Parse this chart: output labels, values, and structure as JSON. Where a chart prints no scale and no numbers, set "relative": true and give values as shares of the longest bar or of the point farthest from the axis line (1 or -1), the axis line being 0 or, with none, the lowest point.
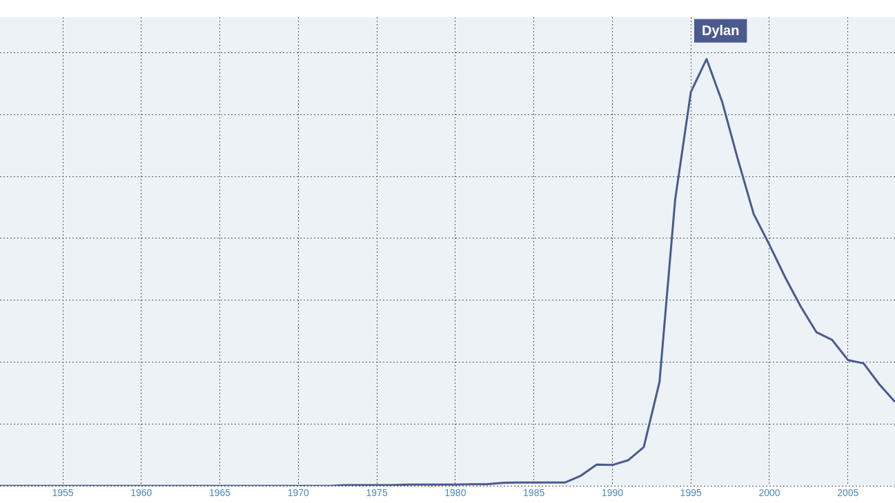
{
  "chart_data": {
    "type": "line",
    "relative": true,
    "x": [
      1951,
      1952,
      1953,
      1954,
      1955,
      1956,
      1957,
      1958,
      1959,
      1960,
      1961,
      1962,
      1963,
      1964,
      1965,
      1966,
      1967,
      1968,
      1969,
      1970,
      1971,
      1972,
      1973,
      1974,
      1975,
      1976,
      1977,
      1978,
      1979,
      1980,
      1981,
      1982,
      1983,
      1984,
      1985,
      1986,
      1987,
      1988,
      1989,
      1990,
      1991,
      1992,
      1993,
      1994,
      1995,
      1996,
      1997,
      1998,
      1999,
      2000,
      2001,
      2002,
      2003,
      2004,
      2005,
      2006,
      2007,
      2008
    ],
    "series": [
      {
        "name": "Dylan",
        "color": "#4a5a8f",
        "values": [
          0,
          0,
          0,
          0,
          0,
          0,
          0,
          0,
          0,
          0,
          0,
          0,
          0,
          0,
          0,
          0,
          0,
          0,
          0,
          0,
          0,
          0,
          0.002,
          0.002,
          0.002,
          0.002,
          0.003,
          0.003,
          0.003,
          0.003,
          0.004,
          0.004,
          0.007,
          0.008,
          0.008,
          0.008,
          0.008,
          0.024,
          0.05,
          0.049,
          0.06,
          0.091,
          0.243,
          0.671,
          0.923,
          1,
          0.899,
          0.764,
          0.637,
          0.565,
          0.489,
          0.42,
          0.36,
          0.342,
          0.295,
          0.287,
          0.238,
          0.197
        ]
      }
    ],
    "xlim": [
      1951,
      2008
    ],
    "xticks": [
      1955,
      1960,
      1965,
      1970,
      1975,
      1980,
      1985,
      1990,
      1995,
      2000,
      2005
    ],
    "grid": true,
    "marker": "none",
    "line_style": "solid"
  }
}
